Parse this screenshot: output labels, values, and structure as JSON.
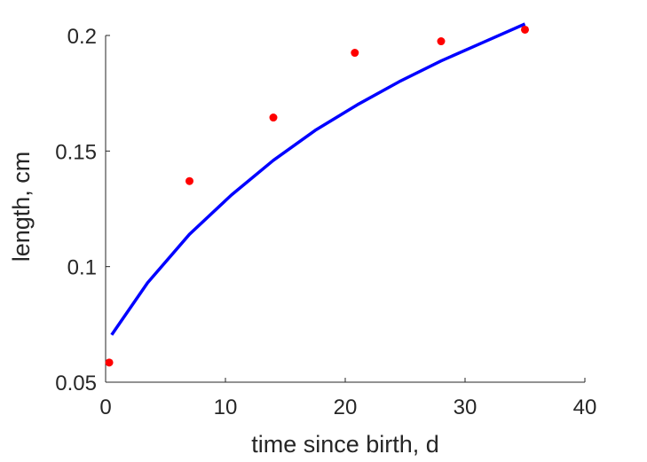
{
  "chart_data": {
    "type": "scatter",
    "xlabel": "time since birth, d",
    "ylabel": "length, cm",
    "xlim": [
      0,
      40
    ],
    "ylim": [
      0.05,
      0.2
    ],
    "xticks": [
      0,
      10,
      20,
      30,
      40
    ],
    "yticks": [
      0.05,
      0.1,
      0.15,
      0.2
    ],
    "ytick_labels": [
      "0.05",
      "0.1",
      "0.15",
      "0.2"
    ],
    "grid": false,
    "series": [
      {
        "kind": "scatter",
        "color": "#ff0000",
        "x": [
          0.3,
          7,
          14,
          20.8,
          28,
          35
        ],
        "y": [
          0.0585,
          0.137,
          0.1645,
          0.1925,
          0.1975,
          0.2025
        ]
      },
      {
        "kind": "line",
        "color": "#0000ff",
        "x": [
          0.5,
          3.5,
          7,
          10.5,
          14,
          17.5,
          21,
          24.5,
          28,
          31.5,
          35
        ],
        "y": [
          0.0705,
          0.093,
          0.114,
          0.131,
          0.146,
          0.159,
          0.17,
          0.18,
          0.189,
          0.197,
          0.205
        ]
      }
    ]
  }
}
